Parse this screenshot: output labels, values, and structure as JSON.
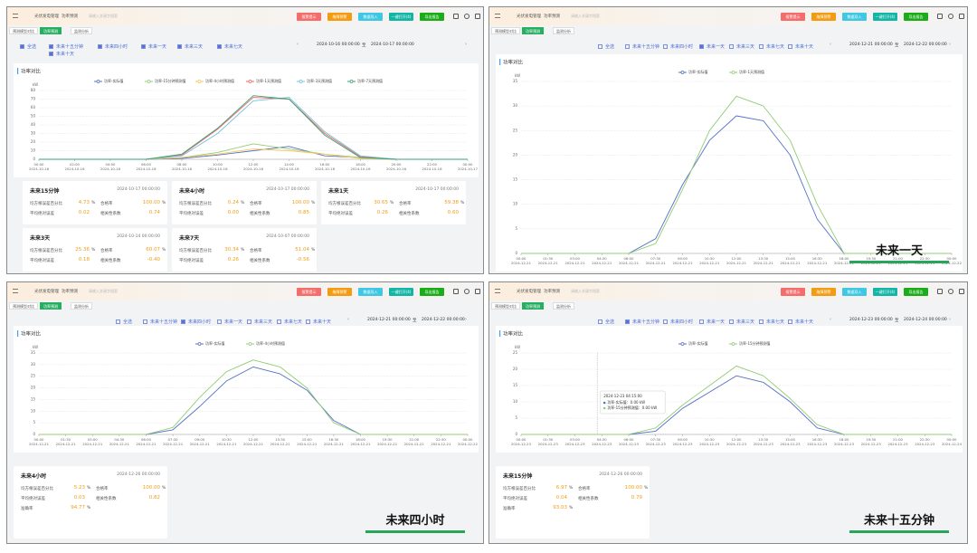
{
  "panels": [
    {
      "breadcrumb": [
        "光伏发电管理",
        "功率预测"
      ],
      "search_placeholder": "请输入关键字搜索",
      "buttons": [
        "报警提示",
        "故障预警",
        "数据导入",
        "一键打开(4)",
        "导出报告"
      ],
      "tabs": [
        "预测模型对比",
        "功率预测",
        "监测分析"
      ],
      "filters": [
        {
          "label": "全选",
          "checked": true
        },
        {
          "label": "未来十五分钟",
          "checked": true
        },
        {
          "label": "未来四小时",
          "checked": true
        },
        {
          "label": "未来一天",
          "checked": true
        },
        {
          "label": "未来三天",
          "checked": true
        },
        {
          "label": "未来七天",
          "checked": true
        },
        {
          "label": "未来十天",
          "checked": true
        }
      ],
      "date_from": "2024-10-16 00:00:00",
      "date_sep": "至",
      "date_to": "2024-10-17 00:00:00",
      "chart": {
        "type": "line",
        "title": "功率对比",
        "y_unit": "kW",
        "ylim": [
          0,
          80
        ],
        "yticks": [
          0,
          10,
          20,
          30,
          40,
          50,
          60,
          70,
          80
        ],
        "grid": true,
        "categories": [
          "00:00",
          "02:00",
          "04:00",
          "06:00",
          "08:00",
          "10:00",
          "12:00",
          "14:00",
          "16:00",
          "18:00",
          "20:00",
          "22:00",
          "00:00"
        ],
        "dates": [
          "2024-10-16",
          "2024-10-16",
          "2024-10-16",
          "2024-10-16",
          "2024-10-16",
          "2024-10-16",
          "2024-10-16",
          "2024-10-16",
          "2024-10-16",
          "2024-10-16",
          "2024-10-16",
          "2024-10-16",
          "2024-10-17"
        ],
        "series": [
          {
            "name": "功率-实际值",
            "color": "#5470c6",
            "values": [
              0,
              0,
              0,
              0,
              1,
              5,
              10,
              15,
              4,
              2,
              0,
              0,
              0
            ]
          },
          {
            "name": "功率-15分钟预测值",
            "color": "#91cc75",
            "values": [
              0,
              0,
              0,
              0,
              2,
              8,
              18,
              12,
              6,
              2,
              0,
              0,
              0
            ]
          },
          {
            "name": "功率-4小时预测值",
            "color": "#fac858",
            "values": [
              0,
              0,
              0,
              0,
              2,
              6,
              12,
              10,
              6,
              1,
              0,
              0,
              0
            ]
          },
          {
            "name": "功率-1天预测值",
            "color": "#ee6666",
            "values": [
              0,
              0,
              0,
              0,
              5,
              35,
              72,
              70,
              30,
              3,
              0,
              0,
              0
            ]
          },
          {
            "name": "功率-3天预测值",
            "color": "#73c0de",
            "values": [
              0,
              0,
              0,
              0,
              4,
              30,
              68,
              72,
              32,
              4,
              0,
              0,
              0
            ]
          },
          {
            "name": "功率-7天预测值",
            "color": "#3ba272",
            "values": [
              0,
              0,
              0,
              0,
              6,
              36,
              74,
              70,
              28,
              2,
              0,
              0,
              0
            ]
          }
        ]
      },
      "cards": [
        {
          "name": "未来15分钟",
          "date": "2024-10-17 00:00:00",
          "metrics": [
            {
              "label": "均方根误差百分比",
              "value": "4.73",
              "unit": "%"
            },
            {
              "label": "合格率",
              "value": "100.00",
              "unit": "%"
            },
            {
              "label": "平均绝对误差",
              "value": "0.02"
            },
            {
              "label": "相关性系数",
              "value": "0.74"
            }
          ]
        },
        {
          "name": "未来4小时",
          "date": "2024-10-17 00:00:00",
          "metrics": [
            {
              "label": "均方根误差百分比",
              "value": "0.24",
              "unit": "%"
            },
            {
              "label": "合格率",
              "value": "100.00",
              "unit": "%"
            },
            {
              "label": "平均绝对误差",
              "value": "0.00"
            },
            {
              "label": "相关性系数",
              "value": "0.85"
            }
          ]
        },
        {
          "name": "未来1天",
          "date": "2024-10-17 00:00:00",
          "metrics": [
            {
              "label": "均方根误差百分比",
              "value": "30.65",
              "unit": "%"
            },
            {
              "label": "合格率",
              "value": "59.38",
              "unit": "%"
            },
            {
              "label": "平均绝对误差",
              "value": "0.26"
            },
            {
              "label": "相关性系数",
              "value": "0.60"
            }
          ]
        },
        {
          "name": "未来3天",
          "date": "2024-10-14 00:00:00",
          "metrics": [
            {
              "label": "均方根误差百分比",
              "value": "25.36",
              "unit": "%"
            },
            {
              "label": "合格率",
              "value": "60.07",
              "unit": "%"
            },
            {
              "label": "平均绝对误差",
              "value": "0.18"
            },
            {
              "label": "相关性系数",
              "value": "-0.40"
            }
          ]
        },
        {
          "name": "未来7天",
          "date": "2024-10-07 00:00:00",
          "metrics": [
            {
              "label": "均方根误差百分比",
              "value": "30.34",
              "unit": "%"
            },
            {
              "label": "合格率",
              "value": "51.04",
              "unit": "%"
            },
            {
              "label": "平均绝对误差",
              "value": "0.26"
            },
            {
              "label": "相关性系数",
              "value": "-0.56"
            }
          ]
        }
      ]
    },
    {
      "breadcrumb": [
        "光伏发电管理",
        "功率预测"
      ],
      "search_placeholder": "请输入关键字搜索",
      "buttons": [
        "报警提示",
        "故障预警",
        "数据导入",
        "一键打开(4)",
        "导出报告"
      ],
      "tabs": [
        "预测模型对比",
        "功率预测",
        "监测分析"
      ],
      "filters": [
        {
          "label": "全选",
          "checked": false
        },
        {
          "label": "未来十五分钟",
          "checked": false
        },
        {
          "label": "未来四小时",
          "checked": false
        },
        {
          "label": "未来一天",
          "checked": true
        },
        {
          "label": "未来三天",
          "checked": false
        },
        {
          "label": "未来七天",
          "checked": false
        },
        {
          "label": "未来十天",
          "checked": false
        }
      ],
      "date_from": "2024-12-21 00:00:00",
      "date_sep": "至",
      "date_to": "2024-12-22 00:00:00",
      "chart": {
        "type": "line",
        "title": "功率对比",
        "y_unit": "kW",
        "ylim": [
          0,
          35
        ],
        "yticks": [
          0,
          5,
          10,
          15,
          20,
          25,
          30,
          35
        ],
        "grid": true,
        "categories": [
          "00:00",
          "01:30",
          "03:00",
          "04:30",
          "06:00",
          "07:30",
          "09:00",
          "10:30",
          "12:00",
          "13:30",
          "15:00",
          "16:30",
          "18:00",
          "19:30",
          "21:00",
          "22:30",
          "00:00"
        ],
        "dates": [
          "2024-12-21",
          "2024-12-21",
          "2024-12-21",
          "2024-12-21",
          "2024-12-21",
          "2024-12-21",
          "2024-12-21",
          "2024-12-21",
          "2024-12-21",
          "2024-12-21",
          "2024-12-21",
          "2024-12-21",
          "2024-12-21",
          "2024-12-21",
          "2024-12-21",
          "2024-12-21",
          "2024-12-22"
        ],
        "series": [
          {
            "name": "功率-实际值",
            "color": "#5470c6",
            "values": [
              0,
              0,
              0,
              0,
              0,
              3,
              14,
              23,
              28,
              27,
              20,
              7,
              0,
              0,
              0,
              0,
              0
            ]
          },
          {
            "name": "功率-1天预测值",
            "color": "#91cc75",
            "values": [
              0,
              0,
              0,
              0,
              0,
              2,
              13,
              25,
              32,
              30,
              23,
              10,
              0,
              0,
              0,
              0,
              0
            ]
          }
        ]
      },
      "cards": [],
      "caption": "未来一天"
    },
    {
      "breadcrumb": [
        "光伏发电管理",
        "功率预测"
      ],
      "search_placeholder": "请输入关键字搜索",
      "buttons": [
        "报警提示",
        "故障预警",
        "数据导入",
        "一键打开(4)",
        "导出报告"
      ],
      "tabs": [
        "预测模型对比",
        "功率预测",
        "监测分析"
      ],
      "filters": [
        {
          "label": "全选",
          "checked": false
        },
        {
          "label": "未来十五分钟",
          "checked": false
        },
        {
          "label": "未来四小时",
          "checked": true
        },
        {
          "label": "未来一天",
          "checked": false
        },
        {
          "label": "未来三天",
          "checked": false
        },
        {
          "label": "未来七天",
          "checked": false
        },
        {
          "label": "未来十天",
          "checked": false
        }
      ],
      "date_from": "2024-12-21 00:00:00",
      "date_sep": "至",
      "date_to": "2024-12-22 00:00:00",
      "chart": {
        "type": "line",
        "title": "功率对比",
        "y_unit": "kW",
        "ylim": [
          0,
          35
        ],
        "yticks": [
          0,
          5,
          10,
          15,
          20,
          25,
          30,
          35
        ],
        "grid": true,
        "categories": [
          "00:00",
          "01:30",
          "03:00",
          "04:30",
          "06:00",
          "07:30",
          "09:00",
          "10:30",
          "12:00",
          "13:30",
          "15:00",
          "16:30",
          "18:00",
          "19:30",
          "21:00",
          "22:30",
          "00:00"
        ],
        "dates": [
          "2024-12-21",
          "2024-12-21",
          "2024-12-21",
          "2024-12-21",
          "2024-12-21",
          "2024-12-21",
          "2024-12-21",
          "2024-12-21",
          "2024-12-21",
          "2024-12-21",
          "2024-12-21",
          "2024-12-21",
          "2024-12-21",
          "2024-12-21",
          "2024-12-21",
          "2024-12-21",
          "2024-12-22"
        ],
        "series": [
          {
            "name": "功率-实际值",
            "color": "#5470c6",
            "values": [
              0,
              0,
              0,
              0,
              0,
              2,
              12,
              23,
              29,
              26,
              19,
              6,
              0,
              0,
              0,
              0,
              0
            ]
          },
          {
            "name": "功率-4小时预测值",
            "color": "#91cc75",
            "values": [
              0,
              0,
              0,
              0,
              0,
              3,
              16,
              27,
              32,
              29,
              20,
              5,
              0,
              0,
              0,
              0,
              0
            ]
          }
        ]
      },
      "cards": [
        {
          "name": "未来4小时",
          "date": "2024-12-26 00:00:00",
          "metrics": [
            {
              "label": "均方根误差百分比",
              "value": "5.23",
              "unit": "%"
            },
            {
              "label": "合格率",
              "value": "100.00",
              "unit": "%"
            },
            {
              "label": "平均绝对误差",
              "value": "0.03"
            },
            {
              "label": "相关性系数",
              "value": "0.82"
            },
            {
              "label": "准确率",
              "value": "94.77",
              "unit": "%"
            }
          ]
        }
      ],
      "caption": "未来四小时"
    },
    {
      "breadcrumb": [
        "光伏发电管理",
        "功率预测"
      ],
      "search_placeholder": "请输入关键字搜索",
      "buttons": [
        "报警提示",
        "故障预警",
        "数据导入",
        "一键打开(4)",
        "导出报告"
      ],
      "tabs": [
        "预测模型对比",
        "功率预测",
        "监测分析"
      ],
      "filters": [
        {
          "label": "全选",
          "checked": false
        },
        {
          "label": "未来十五分钟",
          "checked": true
        },
        {
          "label": "未来四小时",
          "checked": false
        },
        {
          "label": "未来一天",
          "checked": false
        },
        {
          "label": "未来三天",
          "checked": false
        },
        {
          "label": "未来七天",
          "checked": false
        },
        {
          "label": "未来十天",
          "checked": false
        }
      ],
      "date_from": "2024-12-23 00:00:00",
      "date_sep": "至",
      "date_to": "2024-12-24 00:00:00",
      "chart": {
        "type": "line",
        "title": "功率对比",
        "y_unit": "kW",
        "ylim": [
          0,
          25
        ],
        "yticks": [
          0,
          5,
          10,
          15,
          20,
          25
        ],
        "grid": true,
        "categories": [
          "00:00",
          "01:30",
          "03:00",
          "04:30",
          "06:00",
          "07:30",
          "09:00",
          "10:30",
          "12:00",
          "13:30",
          "15:00",
          "16:30",
          "18:00",
          "19:30",
          "21:00",
          "22:30",
          "00:00"
        ],
        "dates": [
          "2024-12-23",
          "2024-12-23",
          "2024-12-23",
          "2024-12-23",
          "2024-12-23",
          "2024-12-23",
          "2024-12-23",
          "2024-12-23",
          "2024-12-23",
          "2024-12-23",
          "2024-12-23",
          "2024-12-23",
          "2024-12-23",
          "2024-12-23",
          "2024-12-23",
          "2024-12-23",
          "2024-12-24"
        ],
        "series": [
          {
            "name": "功率-实际值",
            "color": "#5470c6",
            "values": [
              0,
              0,
              0,
              0,
              0,
              1,
              8,
              13,
              18,
              16,
              10,
              2,
              0,
              0,
              0,
              0,
              0
            ]
          },
          {
            "name": "功率-15分钟预测值",
            "color": "#91cc75",
            "values": [
              0,
              0,
              0,
              0,
              0,
              2,
              9,
              15,
              21,
              18,
              11,
              3,
              0,
              0,
              0,
              0,
              0
            ]
          }
        ],
        "tooltip": {
          "title": "2024-12-23 04:15:00",
          "lines": [
            "功率-实际值：0.00 kW",
            "功率-15分钟预测值：0.00 kW"
          ]
        }
      },
      "cards": [
        {
          "name": "未来15分钟",
          "date": "2024-12-26 00:00:00",
          "metrics": [
            {
              "label": "均方根误差百分比",
              "value": "6.97",
              "unit": "%"
            },
            {
              "label": "合格率",
              "value": "100.00",
              "unit": "%"
            },
            {
              "label": "平均绝对误差",
              "value": "0.04"
            },
            {
              "label": "相关性系数",
              "value": "0.79"
            },
            {
              "label": "准确率",
              "value": "93.03",
              "unit": "%"
            }
          ]
        }
      ],
      "caption": "未来十五分钟"
    }
  ]
}
